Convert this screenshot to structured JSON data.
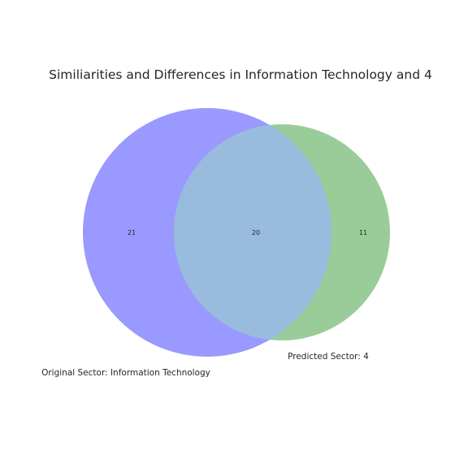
{
  "chart_data": {
    "type": "venn",
    "title": "Similiarities and Differences in Information Technology and 4",
    "sets": [
      {
        "name": "Original Sector: Information Technology",
        "color": "#9999ff",
        "only_count": "21"
      },
      {
        "name": "Predicted Sector: 4",
        "color": "#99cc99",
        "only_count": "11"
      }
    ],
    "intersection": {
      "count": "20",
      "color": "#99bbdd"
    }
  }
}
